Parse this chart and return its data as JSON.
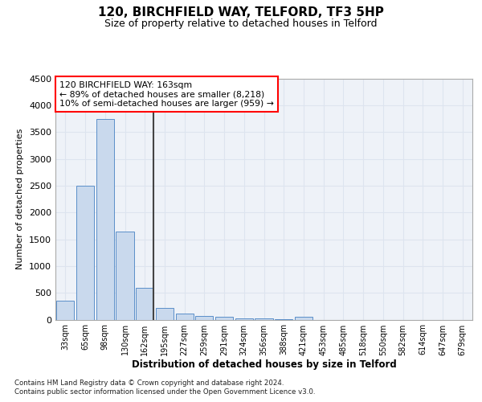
{
  "title1": "120, BIRCHFIELD WAY, TELFORD, TF3 5HP",
  "title2": "Size of property relative to detached houses in Telford",
  "xlabel": "Distribution of detached houses by size in Telford",
  "ylabel": "Number of detached properties",
  "bin_labels": [
    "33sqm",
    "65sqm",
    "98sqm",
    "130sqm",
    "162sqm",
    "195sqm",
    "227sqm",
    "259sqm",
    "291sqm",
    "324sqm",
    "356sqm",
    "388sqm",
    "421sqm",
    "453sqm",
    "485sqm",
    "518sqm",
    "550sqm",
    "582sqm",
    "614sqm",
    "647sqm",
    "679sqm"
  ],
  "bar_values": [
    350,
    2500,
    3750,
    1650,
    600,
    225,
    110,
    75,
    50,
    30,
    18,
    10,
    50,
    0,
    0,
    0,
    0,
    0,
    0,
    0,
    0
  ],
  "bar_color": "#c9d9ed",
  "bar_edge_color": "#5b8fc9",
  "ylim": [
    0,
    4500
  ],
  "yticks": [
    0,
    500,
    1000,
    1500,
    2000,
    2500,
    3000,
    3500,
    4000,
    4500
  ],
  "property_bin_index": 4,
  "annotation_text": "120 BIRCHFIELD WAY: 163sqm\n← 89% of detached houses are smaller (8,218)\n10% of semi-detached houses are larger (959) →",
  "footnote1": "Contains HM Land Registry data © Crown copyright and database right 2024.",
  "footnote2": "Contains public sector information licensed under the Open Government Licence v3.0.",
  "grid_color": "#dde4ef",
  "bg_color": "#eef2f8"
}
